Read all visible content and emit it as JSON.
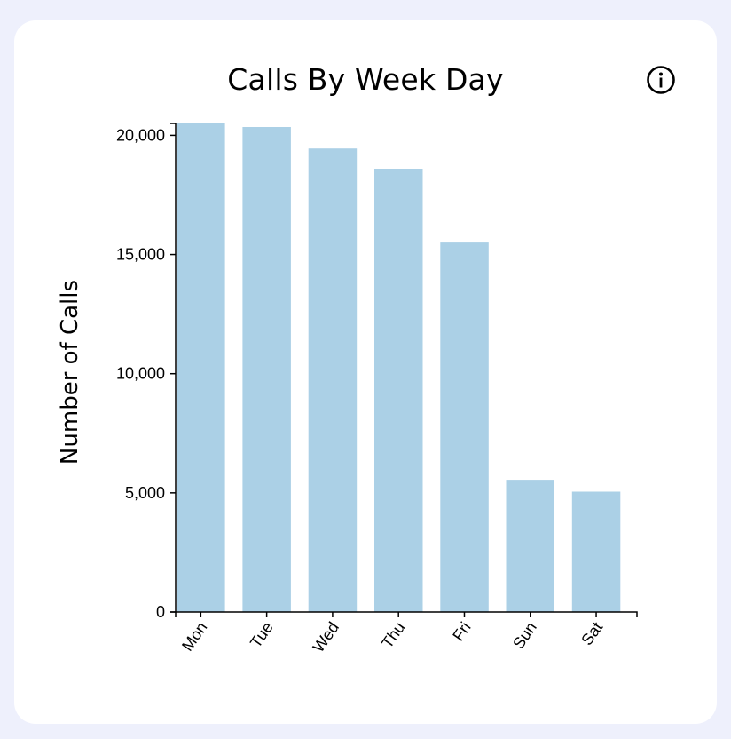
{
  "card": {
    "title": "Calls By Week Day",
    "info_icon": "info-circle-icon"
  },
  "colors": {
    "background": "#eef0fc",
    "card": "#ffffff",
    "bar": "#abd0e6",
    "axis": "#000000"
  },
  "chart_data": {
    "type": "bar",
    "title": "Calls By Week Day",
    "xlabel": "",
    "ylabel": "Number of Calls",
    "categories": [
      "Mon",
      "Tue",
      "Wed",
      "Thu",
      "Fri",
      "Sun",
      "Sat"
    ],
    "values": [
      20500,
      20350,
      19450,
      18600,
      15500,
      5550,
      5050
    ],
    "ylim": [
      0,
      20500
    ],
    "yticks": [
      0,
      5000,
      10000,
      15000,
      20000
    ],
    "ytick_labels": [
      "0",
      "5,000",
      "10,000",
      "15,000",
      "20,000"
    ],
    "grid": false,
    "legend": "none"
  }
}
